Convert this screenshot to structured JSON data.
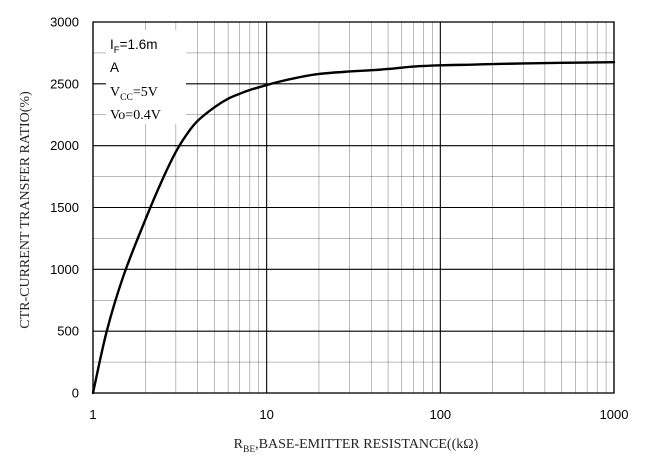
{
  "chart_data": {
    "type": "line",
    "title": "",
    "xlabel": {
      "main": "R",
      "sub": "BE",
      "rest": ",BASE-EMITTER RESISTANCE((kΩ)"
    },
    "ylabel": "CTR-CURRENT TRANSFER RATIO(%)",
    "x_scale": "log",
    "xlim": [
      1,
      1000
    ],
    "ylim": [
      0,
      3000
    ],
    "x_ticks": [
      1,
      10,
      100,
      1000
    ],
    "x_tick_labels": [
      "1",
      "10",
      "100",
      "1000"
    ],
    "y_ticks": [
      0,
      500,
      1000,
      1500,
      2000,
      2500,
      3000
    ],
    "y_tick_labels": [
      "0",
      "500",
      "1000",
      "1500",
      "2000",
      "2500",
      "3000"
    ],
    "y_minor_step": 250,
    "grid": true,
    "legend": "none",
    "annotation": {
      "line1": {
        "main": "I",
        "sub": "F",
        "rest": "=1.6m"
      },
      "line2": "A",
      "line3": {
        "main": "V",
        "sub": "CC",
        "rest": "=5V"
      },
      "line4": "Vo=0.4V"
    },
    "series": [
      {
        "x": [
          1,
          1.2,
          1.5,
          2,
          2.5,
          3,
          3.5,
          4,
          5,
          6,
          7,
          8,
          10,
          12,
          15,
          20,
          30,
          40,
          50,
          70,
          100,
          150,
          200,
          300,
          500,
          1000
        ],
        "y": [
          0,
          500,
          950,
          1400,
          1720,
          1950,
          2100,
          2200,
          2310,
          2380,
          2420,
          2450,
          2490,
          2520,
          2550,
          2580,
          2600,
          2610,
          2620,
          2640,
          2650,
          2655,
          2660,
          2665,
          2670,
          2675
        ]
      }
    ]
  },
  "style": {
    "line_color": "#000000",
    "grid_color": "#000000",
    "background": "#ffffff"
  }
}
